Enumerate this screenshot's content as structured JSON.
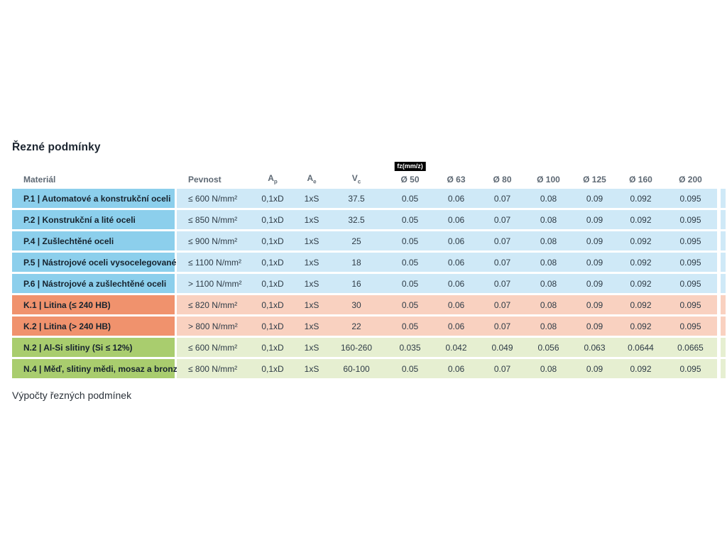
{
  "title": "Řezné podmínky",
  "footer": "Výpočty řezných podmínek",
  "colors": {
    "steel_dark": "#8ccfec",
    "steel_light": "#cfe9f7",
    "cast_iron_dark": "#f0926d",
    "cast_iron_light": "#f9d1c0",
    "nonferrous_dark": "#a9cd6e",
    "nonferrous_light": "#e6efd1",
    "badge_bg": "#000000",
    "badge_text": "#ffffff"
  },
  "table": {
    "fz_badge": "fz(mm/z)",
    "headers": {
      "material": "Materiál",
      "pevnost": "Pevnost",
      "ap": {
        "base": "A",
        "sub": "p"
      },
      "ae": {
        "base": "A",
        "sub": "e"
      },
      "vc": {
        "base": "V",
        "sub": "c"
      },
      "d50": "Ø 50",
      "d63": "Ø 63",
      "d80": "Ø 80",
      "d100": "Ø 100",
      "d125": "Ø 125",
      "d160": "Ø 160",
      "d200": "Ø 200"
    },
    "diameters": [
      "50",
      "63",
      "80",
      "100",
      "125",
      "160",
      "200"
    ],
    "rows": [
      {
        "group": "P",
        "material": "P.1 | Automatové a konstrukční oceli",
        "pevnost": "≤ 600 N/mm²",
        "ap": "0,1xD",
        "ae": "1xS",
        "vc": "37.5",
        "fz": [
          "0.05",
          "0.06",
          "0.07",
          "0.08",
          "0.09",
          "0.092",
          "0.095"
        ]
      },
      {
        "group": "P",
        "material": "P.2 | Konstrukční a lité oceli",
        "pevnost": "≤ 850 N/mm²",
        "ap": "0,1xD",
        "ae": "1xS",
        "vc": "32.5",
        "fz": [
          "0.05",
          "0.06",
          "0.07",
          "0.08",
          "0.09",
          "0.092",
          "0.095"
        ]
      },
      {
        "group": "P",
        "material": "P.4 | Zušlechtěné oceli",
        "pevnost": "≤ 900 N/mm²",
        "ap": "0,1xD",
        "ae": "1xS",
        "vc": "25",
        "fz": [
          "0.05",
          "0.06",
          "0.07",
          "0.08",
          "0.09",
          "0.092",
          "0.095"
        ]
      },
      {
        "group": "P",
        "material": "P.5 | Nástrojové oceli vysocelegované",
        "pevnost": "≤ 1100 N/mm²",
        "ap": "0,1xD",
        "ae": "1xS",
        "vc": "18",
        "fz": [
          "0.05",
          "0.06",
          "0.07",
          "0.08",
          "0.09",
          "0.092",
          "0.095"
        ]
      },
      {
        "group": "P",
        "material": "P.6 | Nástrojové a zušlechtěné oceli",
        "pevnost": "> 1100 N/mm²",
        "ap": "0,1xD",
        "ae": "1xS",
        "vc": "16",
        "fz": [
          "0.05",
          "0.06",
          "0.07",
          "0.08",
          "0.09",
          "0.092",
          "0.095"
        ]
      },
      {
        "group": "K",
        "material": "K.1 | Litina (≤ 240 HB)",
        "pevnost": "≤ 820 N/mm²",
        "ap": "0,1xD",
        "ae": "1xS",
        "vc": "30",
        "fz": [
          "0.05",
          "0.06",
          "0.07",
          "0.08",
          "0.09",
          "0.092",
          "0.095"
        ]
      },
      {
        "group": "K",
        "material": "K.2 | Litina (> 240 HB)",
        "pevnost": "> 800 N/mm²",
        "ap": "0,1xD",
        "ae": "1xS",
        "vc": "22",
        "fz": [
          "0.05",
          "0.06",
          "0.07",
          "0.08",
          "0.09",
          "0.092",
          "0.095"
        ]
      },
      {
        "group": "N",
        "material": "N.2 | Al-Si slitiny (Si ≤ 12%)",
        "pevnost": "≤ 600 N/mm²",
        "ap": "0,1xD",
        "ae": "1xS",
        "vc": "160-260",
        "fz": [
          "0.035",
          "0.042",
          "0.049",
          "0.056",
          "0.063",
          "0.0644",
          "0.0665"
        ]
      },
      {
        "group": "N",
        "material": "N.4 | Měď, slitiny mědi, mosaz a bronz",
        "pevnost": "≤ 800 N/mm²",
        "ap": "0,1xD",
        "ae": "1xS",
        "vc": "60-100",
        "fz": [
          "0.05",
          "0.06",
          "0.07",
          "0.08",
          "0.09",
          "0.092",
          "0.095"
        ]
      }
    ]
  }
}
